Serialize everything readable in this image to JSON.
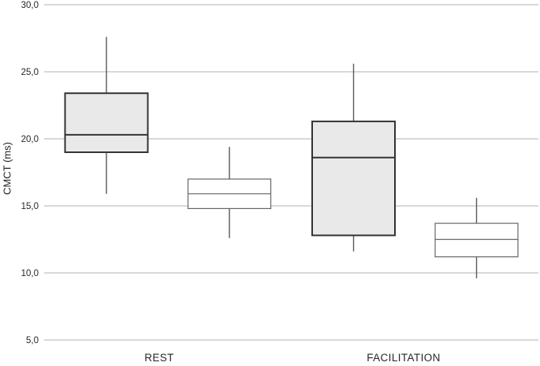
{
  "chart_data": {
    "type": "boxplot",
    "title": "",
    "ylabel": "CMCT (ms)",
    "xlabel": "",
    "ylim": [
      5,
      30
    ],
    "yticks": [
      30,
      25,
      20,
      15,
      10,
      5
    ],
    "ytick_labels": [
      "30,0",
      "25,0",
      "20,0",
      "15,0",
      "10,0",
      "5,0"
    ],
    "categories": [
      "REST",
      "FACILITATION"
    ],
    "grid": "horizontal",
    "legend": "none",
    "boxes": [
      {
        "group": "REST",
        "series": "gray",
        "whisker_low": 15.9,
        "q1": 19.0,
        "median": 20.3,
        "q3": 23.4,
        "whisker_high": 27.6,
        "fill": "#e9e9e9",
        "border": "#333333"
      },
      {
        "group": "REST",
        "series": "white",
        "whisker_low": 12.6,
        "q1": 14.8,
        "median": 15.9,
        "q3": 17.0,
        "whisker_high": 19.4,
        "fill": "#ffffff",
        "border": "#666666"
      },
      {
        "group": "FACILITATION",
        "series": "gray",
        "whisker_low": 11.6,
        "q1": 12.8,
        "median": 18.6,
        "q3": 21.3,
        "whisker_high": 25.6,
        "fill": "#e9e9e9",
        "border": "#333333"
      },
      {
        "group": "FACILITATION",
        "series": "white",
        "whisker_low": 9.6,
        "q1": 11.2,
        "median": 12.5,
        "q3": 13.7,
        "whisker_high": 15.6,
        "fill": "#ffffff",
        "border": "#666666"
      }
    ],
    "colors": {
      "background": "#ffffff",
      "gridline": "#cccccc",
      "whisker": "#595959",
      "tick_text": "#262626",
      "label_text": "#262626"
    }
  }
}
